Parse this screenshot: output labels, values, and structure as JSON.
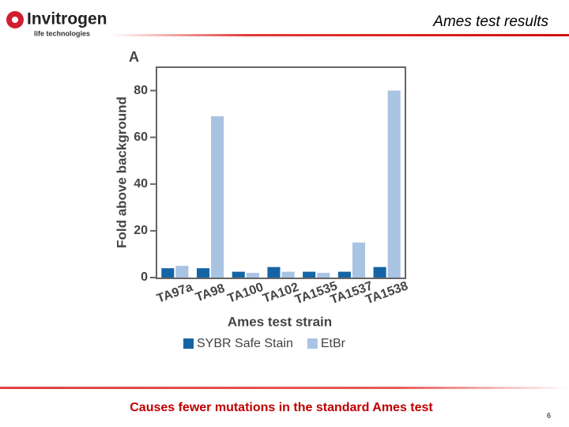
{
  "slide": {
    "logo": "Invitrogen",
    "logo_subtitle": "life technologies",
    "title": "Ames test results",
    "caption": "Causes fewer mutations in the standard Ames test",
    "page_number": "6"
  },
  "chart_data": {
    "type": "bar",
    "panel_label": "A",
    "y_label": "Fold above background",
    "x_label": "Ames test strain",
    "categories": [
      "TA97a",
      "TA98",
      "TA100",
      "TA102",
      "TA1535",
      "TA1537",
      "TA1538"
    ],
    "series": [
      {
        "name": "SYBR Safe Stain",
        "color": "#1565a6",
        "values": [
          4,
          4,
          2.5,
          4.5,
          2.5,
          2.5,
          4.5
        ]
      },
      {
        "name": "EtBr",
        "color": "#a9c3e3",
        "values": [
          5,
          69,
          2,
          2.5,
          2,
          15,
          80
        ]
      }
    ],
    "ylim": [
      0,
      90
    ],
    "yticks": [
      0,
      20,
      40,
      60,
      80
    ],
    "grid": false,
    "legend": "bottom"
  }
}
